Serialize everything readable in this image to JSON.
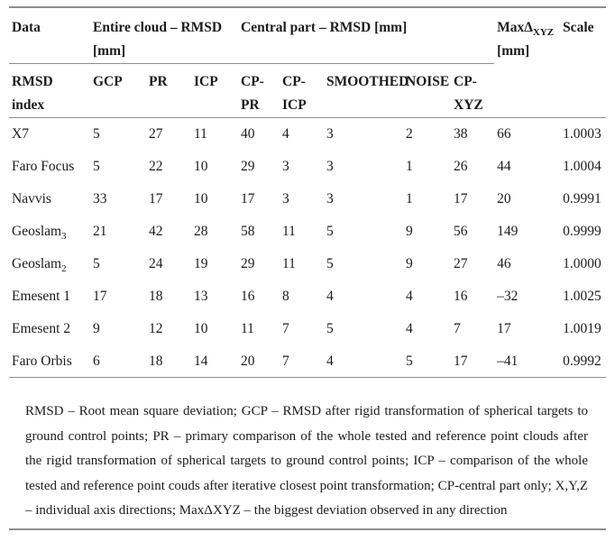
{
  "header": {
    "group_data": "Data",
    "group_entire_line1": "Entire cloud – RMSD",
    "group_entire_line2": "[mm]",
    "group_central": "Central part – RMSD [mm]",
    "group_max_prefix": "MaxΔ",
    "group_max_sub": "XYZ",
    "group_max_line2": "[mm]",
    "group_scale": "Scale"
  },
  "subheader": {
    "stub_line1": "RMSD",
    "stub_line2": "index",
    "columns": [
      {
        "line1": "GCP",
        "line2": ""
      },
      {
        "line1": "PR",
        "line2": ""
      },
      {
        "line1": "ICP",
        "line2": ""
      },
      {
        "line1": "CP-",
        "line2": "PR"
      },
      {
        "line1": "CP-",
        "line2": "ICP"
      },
      {
        "line1": "SMOOTHED",
        "line2": ""
      },
      {
        "line1": "NOISE",
        "line2": ""
      },
      {
        "line1": "CP-",
        "line2": "XYZ"
      }
    ]
  },
  "table": {
    "rows": [
      {
        "name": "X7",
        "name_sub": "",
        "values": [
          "5",
          "27",
          "11",
          "40",
          "4",
          "3",
          "2",
          "38",
          "66",
          "1.0003"
        ]
      },
      {
        "name": "Faro Focus",
        "name_sub": "",
        "values": [
          "5",
          "22",
          "10",
          "29",
          "3",
          "3",
          "1",
          "26",
          "44",
          "1.0004"
        ]
      },
      {
        "name": "Navvis",
        "name_sub": "",
        "values": [
          "33",
          "17",
          "10",
          "17",
          "3",
          "3",
          "1",
          "17",
          "20",
          "0.9991"
        ]
      },
      {
        "name": "Geoslam",
        "name_sub": "3",
        "values": [
          "21",
          "42",
          "28",
          "58",
          "11",
          "5",
          "9",
          "56",
          "149",
          "0.9999"
        ]
      },
      {
        "name": "Geoslam",
        "name_sub": "2",
        "values": [
          "5",
          "24",
          "19",
          "29",
          "11",
          "5",
          "9",
          "27",
          "46",
          "1.0000"
        ]
      },
      {
        "name": "Emesent 1",
        "name_sub": "",
        "values": [
          "17",
          "18",
          "13",
          "16",
          "8",
          "4",
          "4",
          "16",
          "–32",
          "1.0025"
        ]
      },
      {
        "name": "Emesent 2",
        "name_sub": "",
        "values": [
          "9",
          "12",
          "10",
          "11",
          "7",
          "5",
          "4",
          "7",
          "17",
          "1.0019"
        ]
      },
      {
        "name": "Faro Orbis",
        "name_sub": "",
        "values": [
          "6",
          "18",
          "14",
          "20",
          "7",
          "4",
          "5",
          "17",
          "–41",
          "0.9992"
        ]
      }
    ]
  },
  "footnote": {
    "text": "RMSD – Root mean square deviation; GCP – RMSD after rigid transformation of spherical targets to ground control points; PR – primary comparison of the whole tested and reference point clouds after the rigid transformation of spherical targets to ground control points; ICP – comparison of the whole tested and reference point couds after iterative closest point transformation; CP-central part only; X,Y,Z – individual axis directions; MaxΔXYZ – the biggest deviation observed in any direction"
  }
}
